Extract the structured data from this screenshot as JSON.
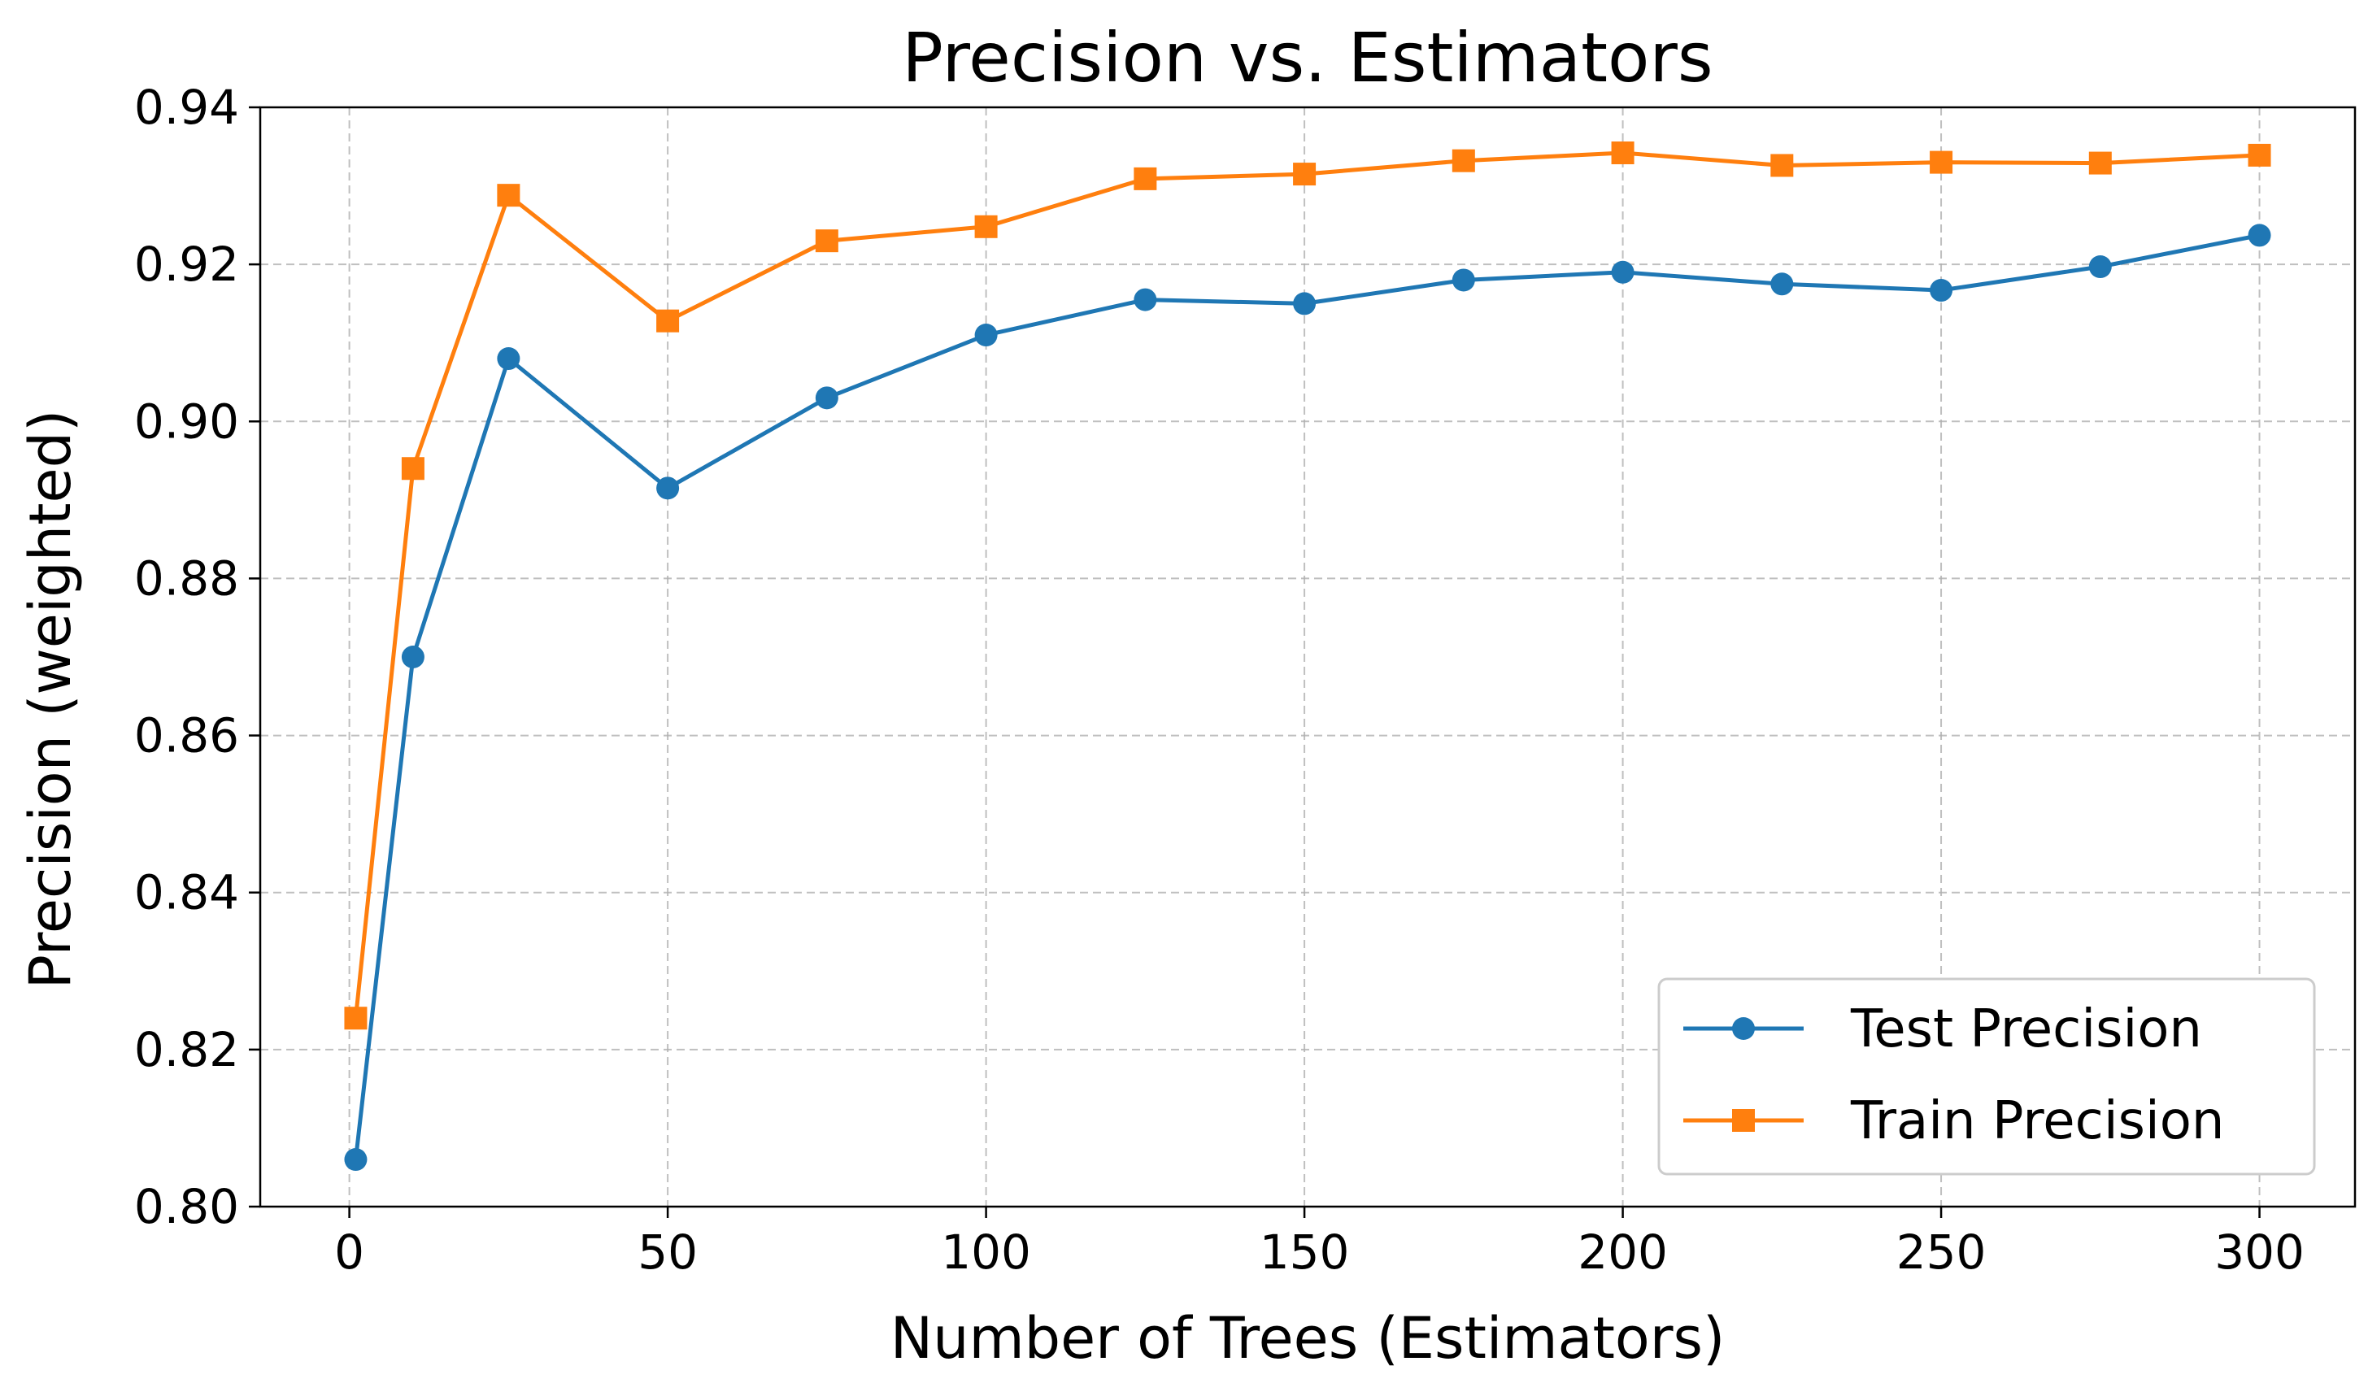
{
  "chart_data": {
    "type": "line",
    "title": "Precision vs. Estimators",
    "xlabel": "Number of Trees (Estimators)",
    "ylabel": "Precision (weighted)",
    "x": [
      1,
      10,
      25,
      50,
      75,
      100,
      125,
      150,
      175,
      200,
      225,
      250,
      275,
      300
    ],
    "xlim": [
      -14,
      315
    ],
    "ylim": [
      0.8,
      0.94
    ],
    "xticks": [
      0,
      50,
      100,
      150,
      200,
      250,
      300
    ],
    "yticks": [
      0.8,
      0.82,
      0.84,
      0.86,
      0.88,
      0.9,
      0.92,
      0.94
    ],
    "xtick_labels": [
      "0",
      "50",
      "100",
      "150",
      "200",
      "250",
      "300"
    ],
    "ytick_labels": [
      "0.80",
      "0.82",
      "0.84",
      "0.86",
      "0.88",
      "0.90",
      "0.92",
      "0.94"
    ],
    "grid": true,
    "legend_position": "bottom-right",
    "series": [
      {
        "name": "Test Precision",
        "color": "#1f77b4",
        "marker": "circle",
        "values": [
          0.806,
          0.87,
          0.908,
          0.8915,
          0.903,
          0.911,
          0.9155,
          0.915,
          0.918,
          0.919,
          0.9175,
          0.9167,
          0.9197,
          0.9237
        ]
      },
      {
        "name": "Train Precision",
        "color": "#ff7f0e",
        "marker": "square",
        "values": [
          0.824,
          0.894,
          0.9288,
          0.9128,
          0.923,
          0.9248,
          0.9309,
          0.9315,
          0.9332,
          0.9342,
          0.9326,
          0.933,
          0.9329,
          0.9339
        ]
      }
    ]
  }
}
